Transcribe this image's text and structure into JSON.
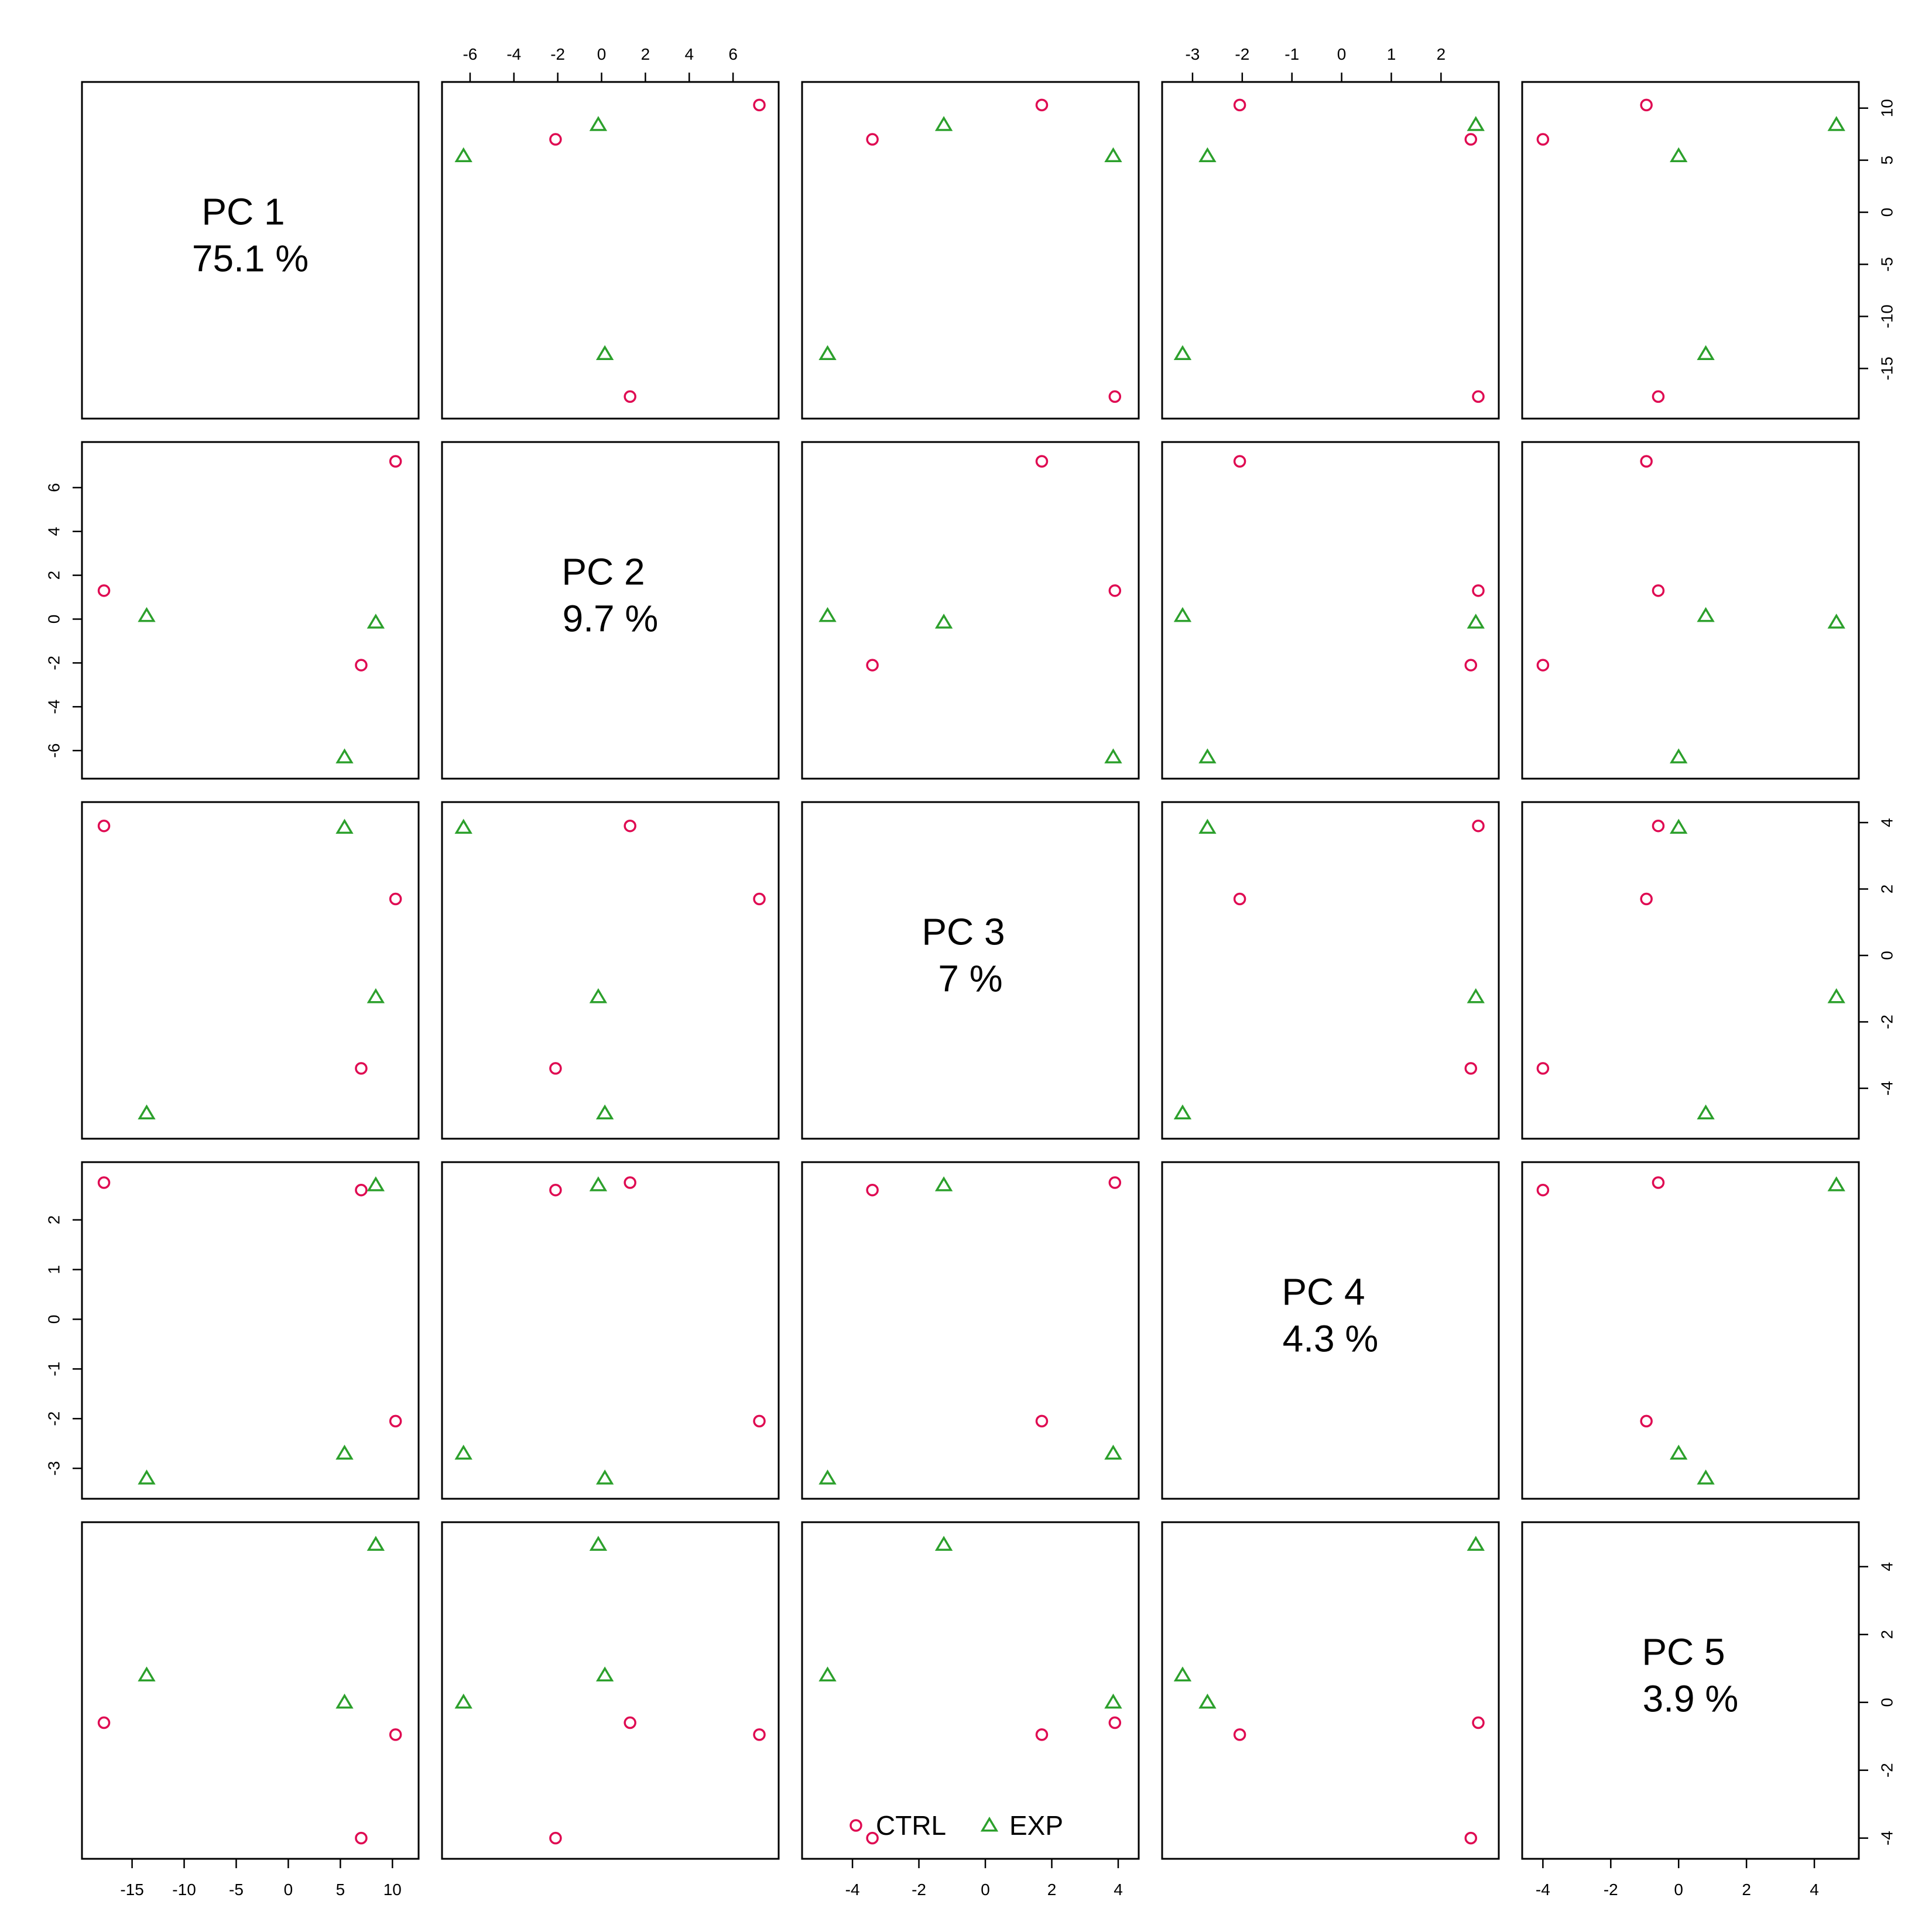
{
  "chart_data": {
    "type": "scatter",
    "layout": "pairs-matrix",
    "variables": [
      {
        "name": "PC 1",
        "pct": "75.1 %",
        "ticks": [
          -15,
          -10,
          -5,
          0,
          5,
          10
        ],
        "range": [
          -18.8,
          11.5
        ]
      },
      {
        "name": "PC 2",
        "pct": "9.7 %",
        "ticks": [
          -6,
          -4,
          -2,
          0,
          2,
          4,
          6
        ],
        "range": [
          -6.8,
          7.6
        ]
      },
      {
        "name": "PC 3",
        "pct": "7 %",
        "ticks": [
          -4,
          -2,
          0,
          2,
          4
        ],
        "range": [
          -5.2,
          4.3
        ]
      },
      {
        "name": "PC 4",
        "pct": "4.3 %",
        "ticks": [
          -3,
          -2,
          -1,
          0,
          1,
          2
        ],
        "range": [
          -3.4,
          2.95
        ]
      },
      {
        "name": "PC 5",
        "pct": "3.9 %",
        "ticks": [
          -4,
          -2,
          0,
          2,
          4
        ],
        "range": [
          -4.3,
          5.0
        ]
      }
    ],
    "groups": [
      {
        "name": "CTRL",
        "marker": "circle",
        "color": "#DF0A52"
      },
      {
        "name": "EXP",
        "marker": "triangle",
        "color": "#2CA02C"
      }
    ],
    "samples": [
      {
        "group": "CTRL",
        "values": [
          -17.7,
          1.3,
          3.9,
          2.75,
          -0.6
        ]
      },
      {
        "group": "CTRL",
        "values": [
          7.0,
          -2.1,
          -3.4,
          2.6,
          -4.0
        ]
      },
      {
        "group": "CTRL",
        "values": [
          10.3,
          7.2,
          1.7,
          -2.05,
          -0.95
        ]
      },
      {
        "group": "EXP",
        "values": [
          -13.6,
          0.15,
          -4.75,
          -3.2,
          0.8
        ]
      },
      {
        "group": "EXP",
        "values": [
          5.4,
          -6.3,
          3.85,
          -2.7,
          0.0
        ]
      },
      {
        "group": "EXP",
        "values": [
          8.4,
          -0.15,
          -1.25,
          2.7,
          4.65
        ]
      }
    ],
    "legend": {
      "position": "bottom-center",
      "items": [
        "CTRL",
        "EXP"
      ]
    }
  }
}
